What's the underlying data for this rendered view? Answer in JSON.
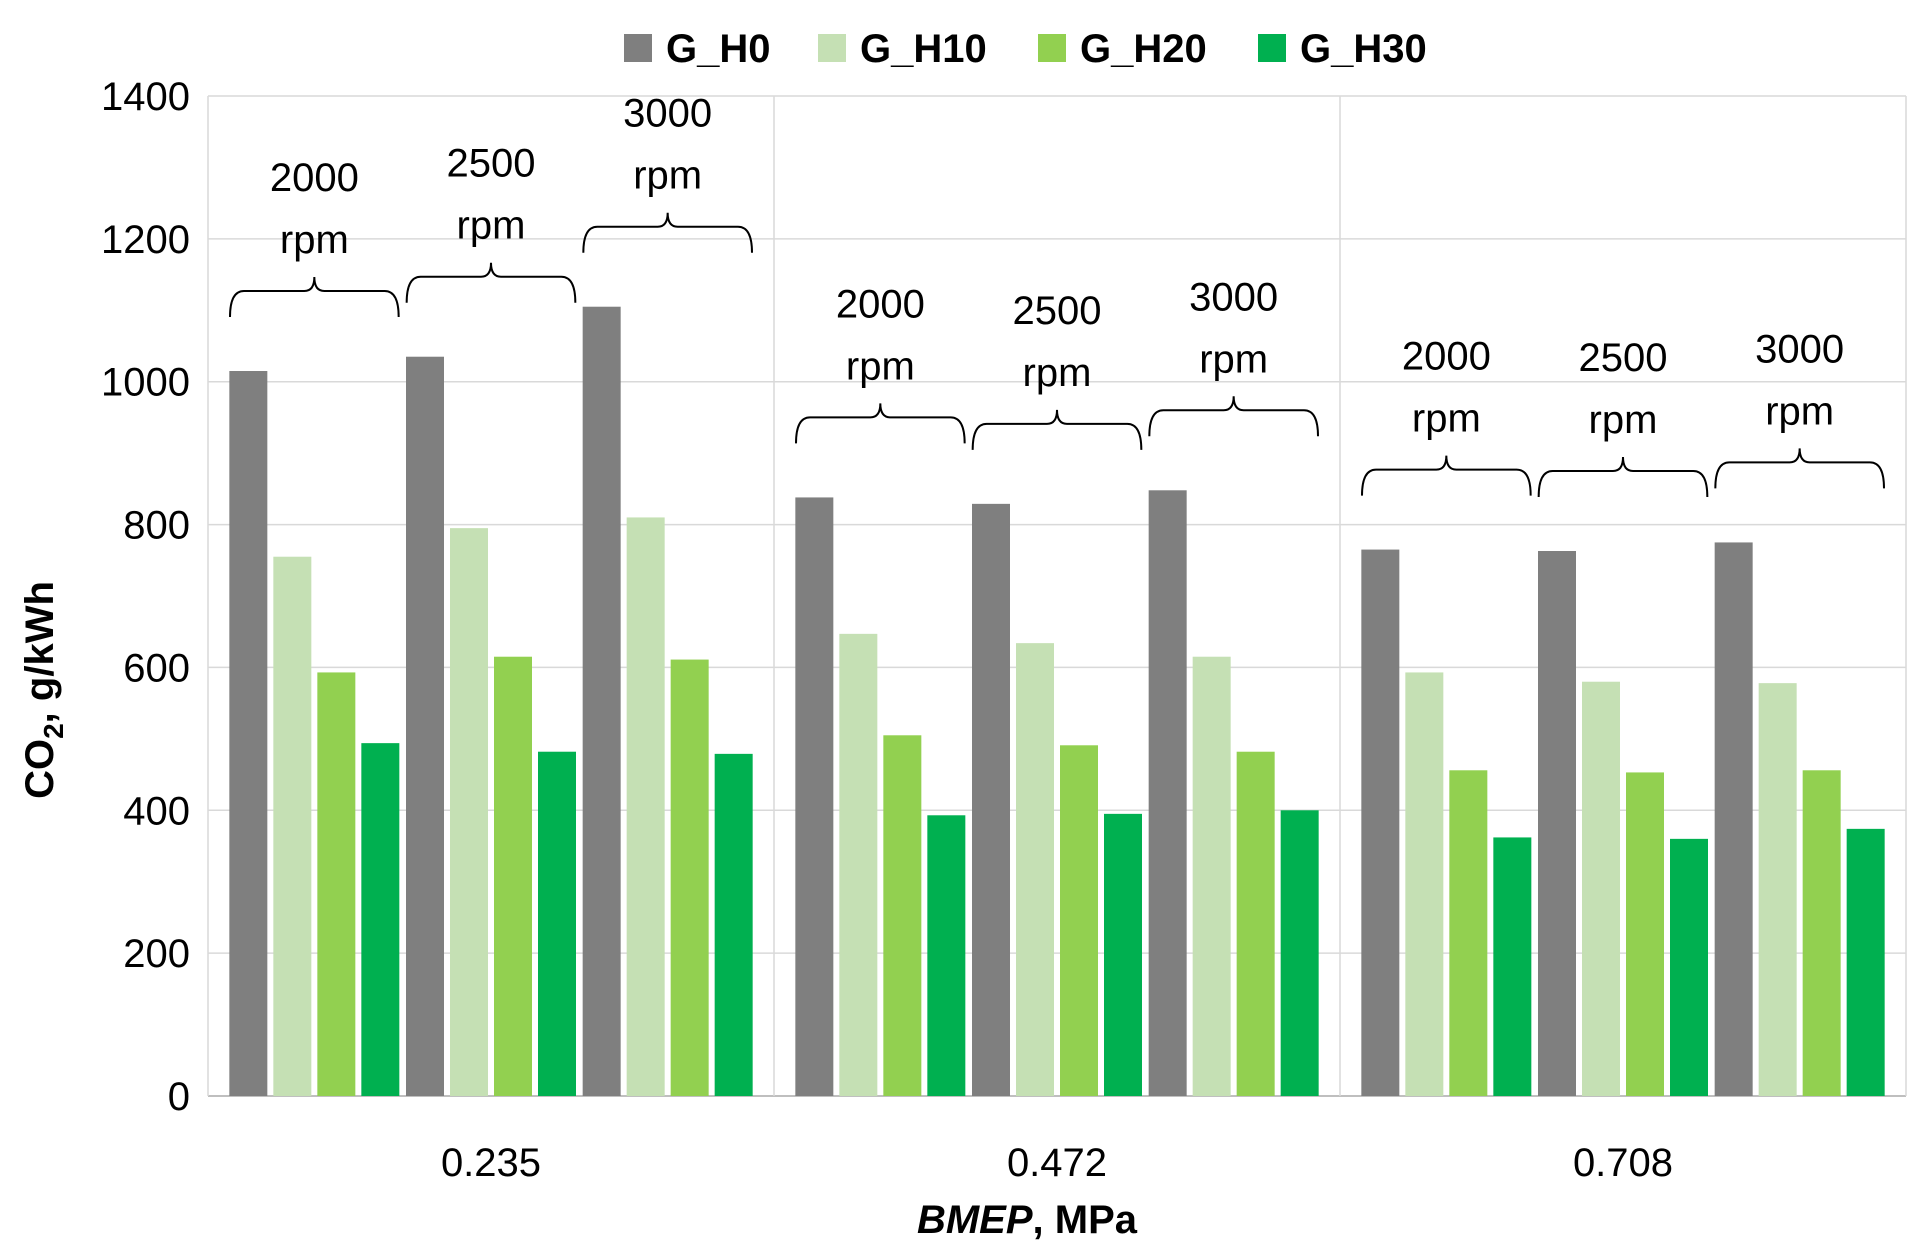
{
  "chart_data": {
    "type": "bar",
    "title": "",
    "ylabel_main": "CO",
    "ylabel_sub": "2",
    "ylabel_rest": ", g/kWh",
    "xlabel_italic": "BMEP",
    "xlabel_rest": ", MPa",
    "ylim": [
      0,
      1400
    ],
    "yticks": [
      0,
      200,
      400,
      600,
      800,
      1000,
      1200,
      1400
    ],
    "grid": true,
    "legend_position": "top",
    "categories": [
      "0.235",
      "0.472",
      "0.708"
    ],
    "subgroups": [
      "2000 rpm",
      "2500 rpm",
      "3000 rpm"
    ],
    "subgroup_labels": [
      {
        "value": "2000",
        "unit": "rpm"
      },
      {
        "value": "2500",
        "unit": "rpm"
      },
      {
        "value": "3000",
        "unit": "rpm"
      }
    ],
    "series": [
      {
        "name": "G_H0",
        "color": "#7f7f7f",
        "values": [
          [
            1015,
            1035,
            1105
          ],
          [
            838,
            829,
            848
          ],
          [
            765,
            763,
            775
          ]
        ]
      },
      {
        "name": "G_H10",
        "color": "#c5e0b4",
        "values": [
          [
            755,
            795,
            810
          ],
          [
            647,
            634,
            615
          ],
          [
            593,
            580,
            578
          ]
        ]
      },
      {
        "name": "G_H20",
        "color": "#92d050",
        "values": [
          [
            593,
            615,
            611
          ],
          [
            505,
            491,
            482
          ],
          [
            456,
            453,
            456
          ]
        ]
      },
      {
        "name": "G_H30",
        "color": "#00b050",
        "values": [
          [
            494,
            482,
            479
          ],
          [
            393,
            395,
            400
          ],
          [
            362,
            360,
            374
          ]
        ]
      }
    ]
  }
}
